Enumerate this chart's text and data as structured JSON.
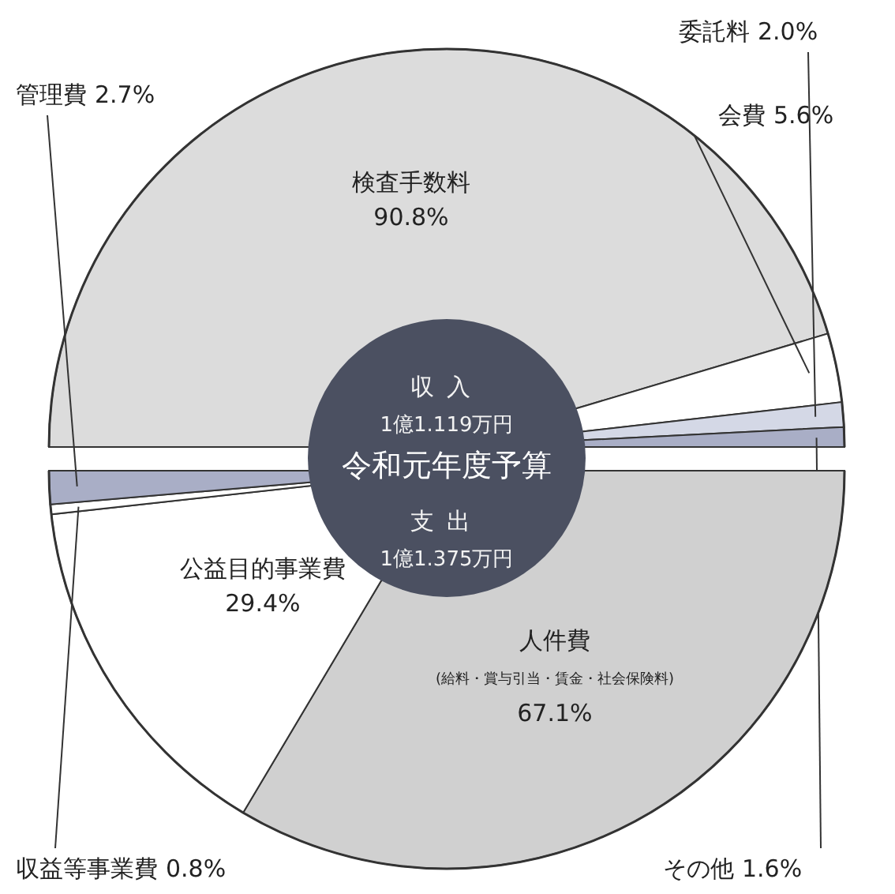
{
  "chart_data": [
    {
      "type": "pie",
      "title": "収入",
      "subtitle": "1億1.119万円",
      "annotations": [
        "令和元年度予算"
      ],
      "categories": [
        "検査手数料",
        "会費",
        "委託料",
        "その他"
      ],
      "values": [
        90.8,
        5.6,
        2.0,
        1.6
      ],
      "value_labels": [
        "90.8%",
        "5.6%",
        "2.0%",
        "1.6%"
      ],
      "colors": [
        "#dcdcdc",
        "#ffffff",
        "#d4d8e6",
        "#a9aec6"
      ]
    },
    {
      "type": "pie",
      "title": "支出",
      "subtitle": "1億1.375万円",
      "annotations": [
        {
          "text": "(給料・賞与引当・賃金・社会保険料)",
          "x": "人件費"
        }
      ],
      "categories": [
        "人件費",
        "公益目的事業費",
        "収益等事業費",
        "管理費"
      ],
      "values": [
        67.1,
        29.4,
        0.8,
        2.7
      ],
      "value_labels": [
        "67.1%",
        "29.4%",
        "0.8%",
        "2.7%"
      ],
      "colors": [
        "#d0d0d0",
        "#ffffff",
        "#ffffff",
        "#a9aec6"
      ]
    }
  ]
}
